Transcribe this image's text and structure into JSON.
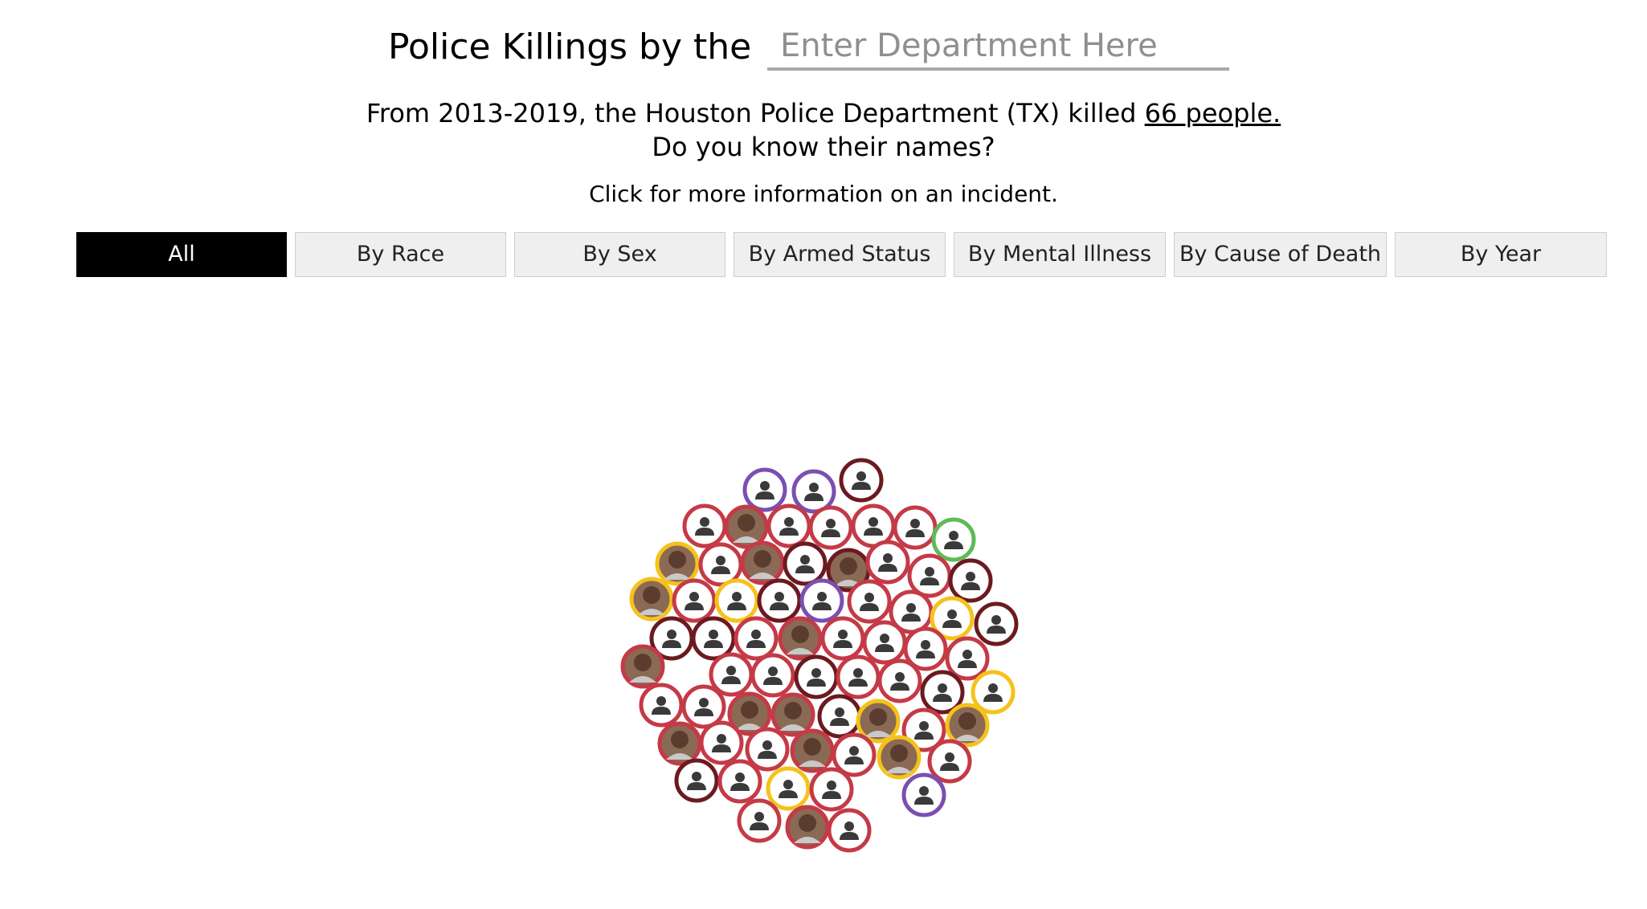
{
  "header": {
    "title_prefix": "Police Killings by the",
    "dept_placeholder": "Enter Department Here",
    "summary_prefix": "From 2013-2019, the Houston Police Department (TX) killed",
    "summary_count": "66 people.",
    "summary_question": "Do you know their names?",
    "hint": "Click for more information on an incident."
  },
  "tabs": [
    {
      "label": "All",
      "active": true
    },
    {
      "label": "By Race",
      "active": false
    },
    {
      "label": "By Sex",
      "active": false
    },
    {
      "label": "By Armed Status",
      "active": false
    },
    {
      "label": "By Mental Illness",
      "active": false
    },
    {
      "label": "By Cause of Death",
      "active": false
    },
    {
      "label": "By Year",
      "active": false
    }
  ],
  "colors": {
    "Black": "#c43a46",
    "DarkRed": "#6b1a20",
    "Hispanic": "#f5c21b",
    "Asian": "#7b4fb0",
    "White": "#5dbb55"
  },
  "people": [
    {
      "ring": "Asian",
      "photo": false
    },
    {
      "ring": "Asian",
      "photo": false
    },
    {
      "ring": "DarkRed",
      "photo": false
    },
    {
      "ring": "Black",
      "photo": false
    },
    {
      "ring": "Black",
      "photo": true
    },
    {
      "ring": "Black",
      "photo": false
    },
    {
      "ring": "Black",
      "photo": false
    },
    {
      "ring": "Black",
      "photo": false
    },
    {
      "ring": "Black",
      "photo": false
    },
    {
      "ring": "White",
      "photo": false
    },
    {
      "ring": "Hispanic",
      "photo": true
    },
    {
      "ring": "Black",
      "photo": false
    },
    {
      "ring": "Black",
      "photo": true
    },
    {
      "ring": "DarkRed",
      "photo": false
    },
    {
      "ring": "DarkRed",
      "photo": true
    },
    {
      "ring": "Black",
      "photo": false
    },
    {
      "ring": "Black",
      "photo": false
    },
    {
      "ring": "DarkRed",
      "photo": false
    },
    {
      "ring": "Hispanic",
      "photo": true
    },
    {
      "ring": "Black",
      "photo": false
    },
    {
      "ring": "Hispanic",
      "photo": false
    },
    {
      "ring": "DarkRed",
      "photo": false
    },
    {
      "ring": "Asian",
      "photo": false
    },
    {
      "ring": "Black",
      "photo": false
    },
    {
      "ring": "Black",
      "photo": false
    },
    {
      "ring": "Hispanic",
      "photo": false
    },
    {
      "ring": "DarkRed",
      "photo": false
    },
    {
      "ring": "DarkRed",
      "photo": false
    },
    {
      "ring": "DarkRed",
      "photo": false
    },
    {
      "ring": "Black",
      "photo": false
    },
    {
      "ring": "Black",
      "photo": true
    },
    {
      "ring": "Black",
      "photo": false
    },
    {
      "ring": "Black",
      "photo": false
    },
    {
      "ring": "Black",
      "photo": false
    },
    {
      "ring": "Black",
      "photo": false
    },
    {
      "ring": "Black",
      "photo": true
    },
    {
      "ring": "Black",
      "photo": false
    },
    {
      "ring": "Black",
      "photo": false
    },
    {
      "ring": "DarkRed",
      "photo": false
    },
    {
      "ring": "Black",
      "photo": false
    },
    {
      "ring": "Black",
      "photo": false
    },
    {
      "ring": "DarkRed",
      "photo": false
    },
    {
      "ring": "Hispanic",
      "photo": false
    },
    {
      "ring": "Black",
      "photo": false
    },
    {
      "ring": "Black",
      "photo": false
    },
    {
      "ring": "Black",
      "photo": true
    },
    {
      "ring": "Black",
      "photo": true
    },
    {
      "ring": "DarkRed",
      "photo": false
    },
    {
      "ring": "Hispanic",
      "photo": true
    },
    {
      "ring": "Black",
      "photo": false
    },
    {
      "ring": "Hispanic",
      "photo": true
    },
    {
      "ring": "Black",
      "photo": true
    },
    {
      "ring": "Black",
      "photo": false
    },
    {
      "ring": "Black",
      "photo": false
    },
    {
      "ring": "Black",
      "photo": true
    },
    {
      "ring": "Black",
      "photo": false
    },
    {
      "ring": "Hispanic",
      "photo": true
    },
    {
      "ring": "Black",
      "photo": false
    },
    {
      "ring": "DarkRed",
      "photo": false
    },
    {
      "ring": "Black",
      "photo": false
    },
    {
      "ring": "Hispanic",
      "photo": false
    },
    {
      "ring": "Black",
      "photo": false
    },
    {
      "ring": "Asian",
      "photo": false
    },
    {
      "ring": "Black",
      "photo": false
    },
    {
      "ring": "Black",
      "photo": true
    },
    {
      "ring": "Black",
      "photo": false
    }
  ]
}
